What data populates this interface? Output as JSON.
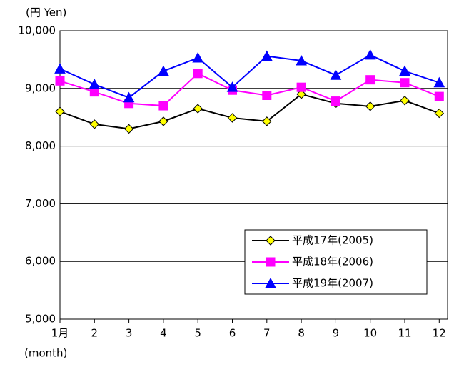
{
  "chart_data": {
    "type": "line",
    "y_axis_label": "(円 Yen)",
    "x_axis_label": "(month)",
    "categories": [
      "1月",
      "2",
      "3",
      "4",
      "5",
      "6",
      "7",
      "8",
      "9",
      "10",
      "11",
      "12"
    ],
    "series": [
      {
        "name": "平成17年(2005)",
        "color": "#000000",
        "fill": "#ffff00",
        "marker": "diamond",
        "values": [
          8600,
          8380,
          8300,
          8430,
          8650,
          8490,
          8430,
          8900,
          8740,
          8690,
          8790,
          8570
        ]
      },
      {
        "name": "平成18年(2006)",
        "color": "#ff00ff",
        "fill": "#ff00ff",
        "marker": "square",
        "values": [
          9130,
          8940,
          8740,
          8700,
          9260,
          8970,
          8880,
          9020,
          8780,
          9150,
          9100,
          8860
        ]
      },
      {
        "name": "平成19年(2007)",
        "color": "#0000ff",
        "fill": "#0000ff",
        "marker": "triangle",
        "values": [
          9340,
          9070,
          8840,
          9300,
          9530,
          9020,
          9560,
          9480,
          9230,
          9580,
          9300,
          9100
        ]
      }
    ],
    "ylim": [
      5000,
      10000
    ],
    "yticks": [
      {
        "value": 5000,
        "label": "5,000"
      },
      {
        "value": 6000,
        "label": "6,000"
      },
      {
        "value": 7000,
        "label": "7,000"
      },
      {
        "value": 8000,
        "label": "8,000"
      },
      {
        "value": 9000,
        "label": "9,000"
      },
      {
        "value": 10000,
        "label": "10,000"
      }
    ],
    "grid": true,
    "legend": "lower-right"
  }
}
